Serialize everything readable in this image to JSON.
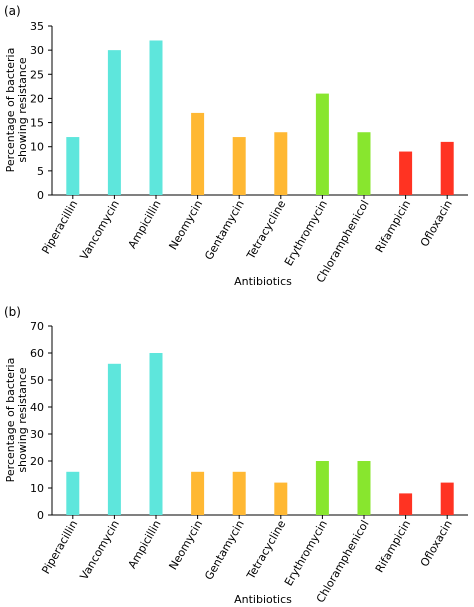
{
  "chart_data": [
    {
      "type": "bar",
      "panel_label": "(a)",
      "categories": [
        "Piperacillin",
        "Vancomycin",
        "Ampicillin",
        "Neomycin",
        "Gentamycin",
        "Tetracycline",
        "Erythromycin",
        "Chloramphenicol",
        "Rifampicin",
        "Ofloxacin"
      ],
      "values": [
        12,
        30,
        32,
        17,
        12,
        13,
        21,
        13,
        9,
        11
      ],
      "colors": [
        "#5ee6dc",
        "#5ee6dc",
        "#5ee6dc",
        "#ffb833",
        "#ffb833",
        "#ffb833",
        "#88e62e",
        "#88e62e",
        "#ff3322",
        "#ff3322"
      ],
      "xlabel": "Antibiotics",
      "ylabel_lines": [
        "Percentage of bacteria",
        "showing resistance"
      ],
      "ylim": [
        0,
        35
      ],
      "yticks": [
        0,
        5,
        10,
        15,
        20,
        25,
        30,
        35
      ],
      "grid": false
    },
    {
      "type": "bar",
      "panel_label": "(b)",
      "categories": [
        "Piperacillin",
        "Vancomycin",
        "Ampicillin",
        "Neomycin",
        "Gentamycin",
        "Tetracycline",
        "Erythromycin",
        "Chloramphenicol",
        "Rifampicin",
        "Ofloxacin"
      ],
      "values": [
        16,
        56,
        60,
        16,
        16,
        12,
        20,
        20,
        8,
        12
      ],
      "colors": [
        "#5ee6dc",
        "#5ee6dc",
        "#5ee6dc",
        "#ffb833",
        "#ffb833",
        "#ffb833",
        "#88e62e",
        "#88e62e",
        "#ff3322",
        "#ff3322"
      ],
      "xlabel": "Antibiotics",
      "ylabel_lines": [
        "Percentage of bacteria",
        "showing resistance"
      ],
      "ylim": [
        0,
        70
      ],
      "yticks": [
        0,
        10,
        20,
        30,
        40,
        50,
        60,
        70
      ],
      "grid": false
    }
  ]
}
